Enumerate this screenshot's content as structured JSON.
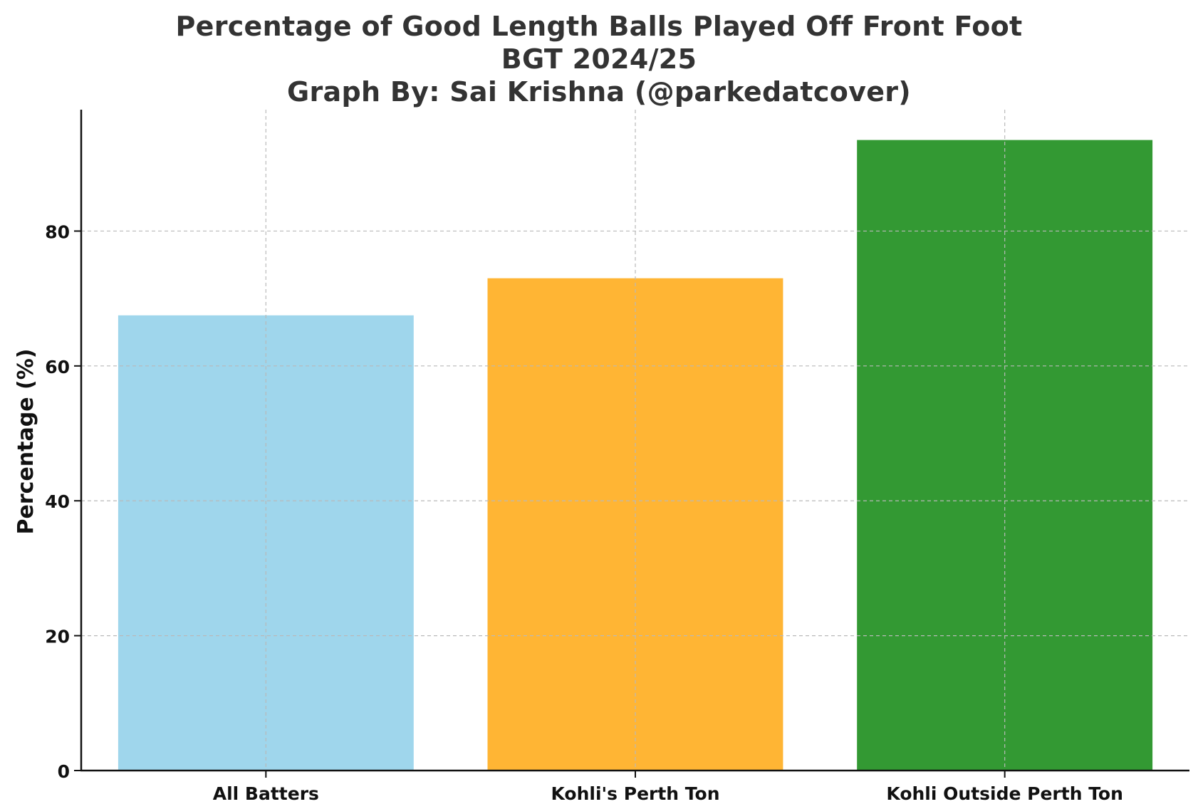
{
  "chart_data": {
    "type": "bar",
    "title": [
      "Percentage of Good Length Balls Played Off Front Foot",
      "BGT 2024/25",
      "Graph By: Sai Krishna (@parkedatcover)"
    ],
    "xlabel": "",
    "ylabel": "Percentage (%)",
    "categories": [
      "All Batters",
      "Kohli's Perth Ton",
      "Kohli Outside Perth Ton"
    ],
    "values": [
      67.5,
      73.0,
      93.5
    ],
    "colors": [
      "#9fd6ec",
      "#ffb534",
      "#339933"
    ],
    "ylim": [
      0,
      98
    ],
    "yticks": [
      0,
      20,
      40,
      60,
      80
    ],
    "grid": true,
    "legend": "none"
  }
}
